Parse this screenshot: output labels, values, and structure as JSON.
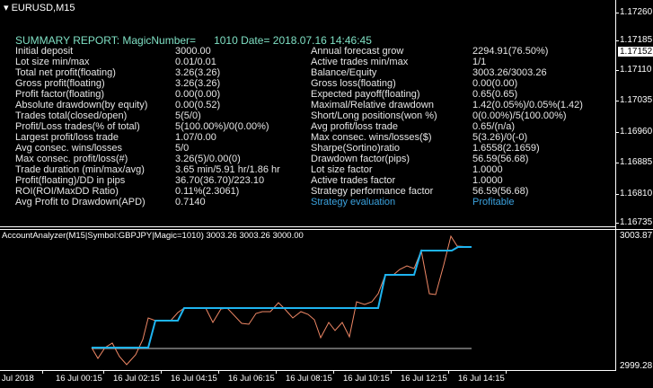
{
  "chart": {
    "symbol": "EURUSD,M15"
  },
  "report": {
    "title": "SUMMARY REPORT: MagicNumber=      1010 Date= 2018.07.16 14:46:45",
    "left": [
      {
        "label": "Initial deposit",
        "value": "3000.00"
      },
      {
        "label": "Lot size min/max",
        "value": "0.01/0.01"
      },
      {
        "label": "Total net profit(floating)",
        "value": "3.26(3.26)"
      },
      {
        "label": "Gross profit(floating)",
        "value": "3.26(3.26)"
      },
      {
        "label": "Profit factor(floating)",
        "value": "0.00(0.00)"
      },
      {
        "label": "Absolute drawdown(by equity)",
        "value": "0.00(0.52)"
      },
      {
        "label": "Trades total(closed/open)",
        "value": "5(5/0)"
      },
      {
        "label": "Profit/Loss trades(% of total)",
        "value": "5(100.00%)/0(0.00%)"
      },
      {
        "label": "Largest profit/loss trade",
        "value": "1.07/0.00"
      },
      {
        "label": "Avg consec. wins/losses",
        "value": "5/0"
      },
      {
        "label": "Max consec. profit/loss(#)",
        "value": "3.26(5)/0.00(0)"
      },
      {
        "label": "Trade duration (min/max/avg)",
        "value": "3.65 min/5.91 hr/1.86 hr"
      },
      {
        "label": "Profit(floating)/DD in pips",
        "value": "36.70(36.70)/223.10"
      },
      {
        "label": "ROI(ROI/MaxDD Ratio)",
        "value": "0.11%(2.3061)"
      },
      {
        "label": "Avg Profit to Drawdown(APD)",
        "value": "0.7140"
      }
    ],
    "right": [
      {
        "label": "Annual forecast grow",
        "value": "2294.91(76.50%)"
      },
      {
        "label": "Active trades min/max",
        "value": "1/1"
      },
      {
        "label": "Balance/Equity",
        "value": "3003.26/3003.26"
      },
      {
        "label": "Gross loss(floating)",
        "value": "0.00(0.00)"
      },
      {
        "label": "Expected payoff(floating)",
        "value": "0.65(0.65)"
      },
      {
        "label": "Maximal/Relative drawdown",
        "value": "1.42(0.05%)/0.05%(1.42)"
      },
      {
        "label": "Short/Long positions(won %)",
        "value": "0(0.00%)/5(100.00%)"
      },
      {
        "label": "Avg profit/loss trade",
        "value": "0.65/(n/a)"
      },
      {
        "label": "Max consec. wins/losses($)",
        "value": "5(3.26)/0(-0)"
      },
      {
        "label": "Sharpe(Sortino)ratio",
        "value": "1.6558(2.1659)"
      },
      {
        "label": "Drawdown factor(pips)",
        "value": "56.59(56.68)"
      },
      {
        "label": "Lot size factor",
        "value": "1.0000"
      },
      {
        "label": "Active trades factor",
        "value": "1.0000"
      },
      {
        "label": "Strategy performance factor",
        "value": "56.59(56.68)"
      },
      {
        "label": "Strategy evaluation",
        "value": "Profitable"
      }
    ]
  },
  "price_axis": [
    "1.17260",
    "1.17185",
    "1.17110",
    "1.17035",
    "1.16960",
    "1.16885",
    "1.16810",
    "1.16735"
  ],
  "current_price": "1.17152",
  "indicator": {
    "title": "AccountAnalyzer(M15|Symbol:GBPJPY|Magic=1010) 3003.26 3003.26 3000.00",
    "max": "3003.87",
    "min": "2999.28"
  },
  "time_axis": [
    "3 Jul 2018",
    "16 Jul 00:15",
    "16 Jul 02:15",
    "16 Jul 04:15",
    "16 Jul 06:15",
    "16 Jul 08:15",
    "16 Jul 10:15",
    "16 Jul 12:15",
    "16 Jul 14:15"
  ],
  "colors": {
    "balance": "#1eb4f0",
    "equity": "#f08866",
    "baseline": "#c8c8c8",
    "title": "#7fe0c4",
    "evaluation": "#3ba3e0"
  }
}
